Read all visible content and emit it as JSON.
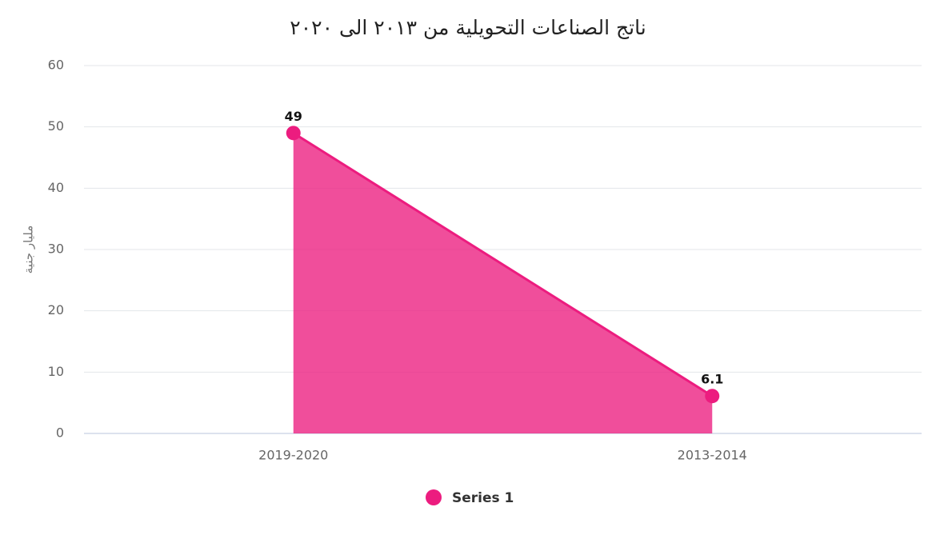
{
  "chart_data": {
    "type": "area",
    "title": "ناتج الصناعات التحويلية من ٢٠١٣ الى ٢٠٢٠",
    "y_label": "مليار جنية",
    "categories": [
      "2019-2020",
      "2013-2014"
    ],
    "series": [
      {
        "name": "Series 1",
        "color": "#ec1c7f",
        "values": [
          49,
          6.1
        ]
      }
    ],
    "ylim": [
      0,
      60
    ],
    "yticks": [
      0,
      10,
      20,
      30,
      40,
      50,
      60
    ],
    "grid": true,
    "legend": "bottom"
  }
}
